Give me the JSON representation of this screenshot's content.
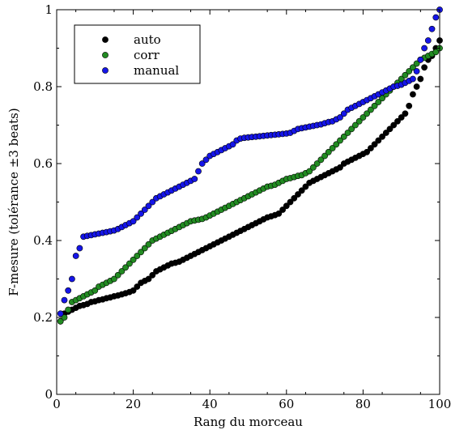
{
  "chart_data": {
    "type": "scatter",
    "xlabel": "Rang du morceau",
    "ylabel": "F-mesure (tolérance ±3 beats)",
    "xlim": [
      0,
      100
    ],
    "ylim": [
      0,
      1
    ],
    "xticks": [
      "0",
      "20",
      "40",
      "60",
      "80",
      "100"
    ],
    "yticks": [
      "0",
      "0.2",
      "0.4",
      "0.6",
      "0.8",
      "1"
    ],
    "legend_position": "top-left",
    "grid": false,
    "x": [
      1,
      2,
      3,
      4,
      5,
      6,
      7,
      8,
      9,
      10,
      11,
      12,
      13,
      14,
      15,
      16,
      17,
      18,
      19,
      20,
      21,
      22,
      23,
      24,
      25,
      26,
      27,
      28,
      29,
      30,
      31,
      32,
      33,
      34,
      35,
      36,
      37,
      38,
      39,
      40,
      41,
      42,
      43,
      44,
      45,
      46,
      47,
      48,
      49,
      50,
      51,
      52,
      53,
      54,
      55,
      56,
      57,
      58,
      59,
      60,
      61,
      62,
      63,
      64,
      65,
      66,
      67,
      68,
      69,
      70,
      71,
      72,
      73,
      74,
      75,
      76,
      77,
      78,
      79,
      80,
      81,
      82,
      83,
      84,
      85,
      86,
      87,
      88,
      89,
      90,
      91,
      92,
      93,
      94,
      95,
      96,
      97,
      98,
      99,
      100
    ],
    "series": [
      {
        "name": "auto",
        "color": "#000000",
        "values": [
          0.19,
          0.21,
          0.215,
          0.22,
          0.225,
          0.23,
          0.232,
          0.235,
          0.24,
          0.242,
          0.245,
          0.247,
          0.25,
          0.252,
          0.255,
          0.257,
          0.26,
          0.263,
          0.266,
          0.27,
          0.28,
          0.29,
          0.295,
          0.3,
          0.31,
          0.32,
          0.325,
          0.33,
          0.335,
          0.34,
          0.342,
          0.345,
          0.35,
          0.355,
          0.36,
          0.365,
          0.37,
          0.375,
          0.38,
          0.385,
          0.39,
          0.395,
          0.4,
          0.405,
          0.41,
          0.415,
          0.42,
          0.425,
          0.43,
          0.435,
          0.44,
          0.445,
          0.45,
          0.455,
          0.46,
          0.463,
          0.466,
          0.47,
          0.48,
          0.49,
          0.5,
          0.51,
          0.52,
          0.53,
          0.54,
          0.55,
          0.555,
          0.56,
          0.565,
          0.57,
          0.575,
          0.58,
          0.585,
          0.59,
          0.6,
          0.605,
          0.61,
          0.615,
          0.62,
          0.625,
          0.63,
          0.64,
          0.65,
          0.66,
          0.67,
          0.68,
          0.69,
          0.7,
          0.71,
          0.72,
          0.73,
          0.75,
          0.78,
          0.8,
          0.82,
          0.85,
          0.87,
          0.88,
          0.9,
          0.92
        ]
      },
      {
        "name": "corr",
        "color": "#228b22",
        "values": [
          0.19,
          0.2,
          0.22,
          0.24,
          0.245,
          0.25,
          0.255,
          0.26,
          0.265,
          0.27,
          0.28,
          0.285,
          0.29,
          0.295,
          0.3,
          0.31,
          0.32,
          0.33,
          0.34,
          0.35,
          0.36,
          0.37,
          0.38,
          0.39,
          0.4,
          0.405,
          0.41,
          0.415,
          0.42,
          0.425,
          0.43,
          0.435,
          0.44,
          0.445,
          0.45,
          0.452,
          0.454,
          0.456,
          0.46,
          0.465,
          0.47,
          0.475,
          0.48,
          0.485,
          0.49,
          0.495,
          0.5,
          0.505,
          0.51,
          0.515,
          0.52,
          0.525,
          0.53,
          0.535,
          0.54,
          0.542,
          0.545,
          0.55,
          0.555,
          0.56,
          0.562,
          0.565,
          0.568,
          0.57,
          0.575,
          0.58,
          0.59,
          0.6,
          0.61,
          0.62,
          0.63,
          0.64,
          0.65,
          0.66,
          0.67,
          0.68,
          0.69,
          0.7,
          0.71,
          0.72,
          0.73,
          0.74,
          0.75,
          0.76,
          0.77,
          0.78,
          0.79,
          0.8,
          0.81,
          0.82,
          0.83,
          0.84,
          0.85,
          0.86,
          0.87,
          0.875,
          0.88,
          0.885,
          0.89,
          0.9
        ]
      },
      {
        "name": "manual",
        "color": "#1515e8",
        "values": [
          0.21,
          0.245,
          0.27,
          0.3,
          0.36,
          0.38,
          0.41,
          0.412,
          0.414,
          0.416,
          0.418,
          0.42,
          0.422,
          0.424,
          0.426,
          0.43,
          0.435,
          0.44,
          0.445,
          0.45,
          0.46,
          0.47,
          0.48,
          0.49,
          0.5,
          0.51,
          0.515,
          0.52,
          0.525,
          0.53,
          0.535,
          0.54,
          0.545,
          0.55,
          0.555,
          0.56,
          0.58,
          0.6,
          0.61,
          0.62,
          0.625,
          0.63,
          0.635,
          0.64,
          0.645,
          0.65,
          0.66,
          0.665,
          0.667,
          0.668,
          0.669,
          0.67,
          0.671,
          0.672,
          0.673,
          0.674,
          0.675,
          0.676,
          0.677,
          0.678,
          0.68,
          0.685,
          0.69,
          0.692,
          0.694,
          0.696,
          0.698,
          0.7,
          0.702,
          0.705,
          0.708,
          0.71,
          0.715,
          0.72,
          0.73,
          0.74,
          0.745,
          0.75,
          0.755,
          0.76,
          0.765,
          0.77,
          0.775,
          0.78,
          0.785,
          0.79,
          0.795,
          0.8,
          0.802,
          0.805,
          0.81,
          0.815,
          0.82,
          0.84,
          0.87,
          0.9,
          0.92,
          0.95,
          0.98,
          1.0
        ]
      }
    ]
  }
}
